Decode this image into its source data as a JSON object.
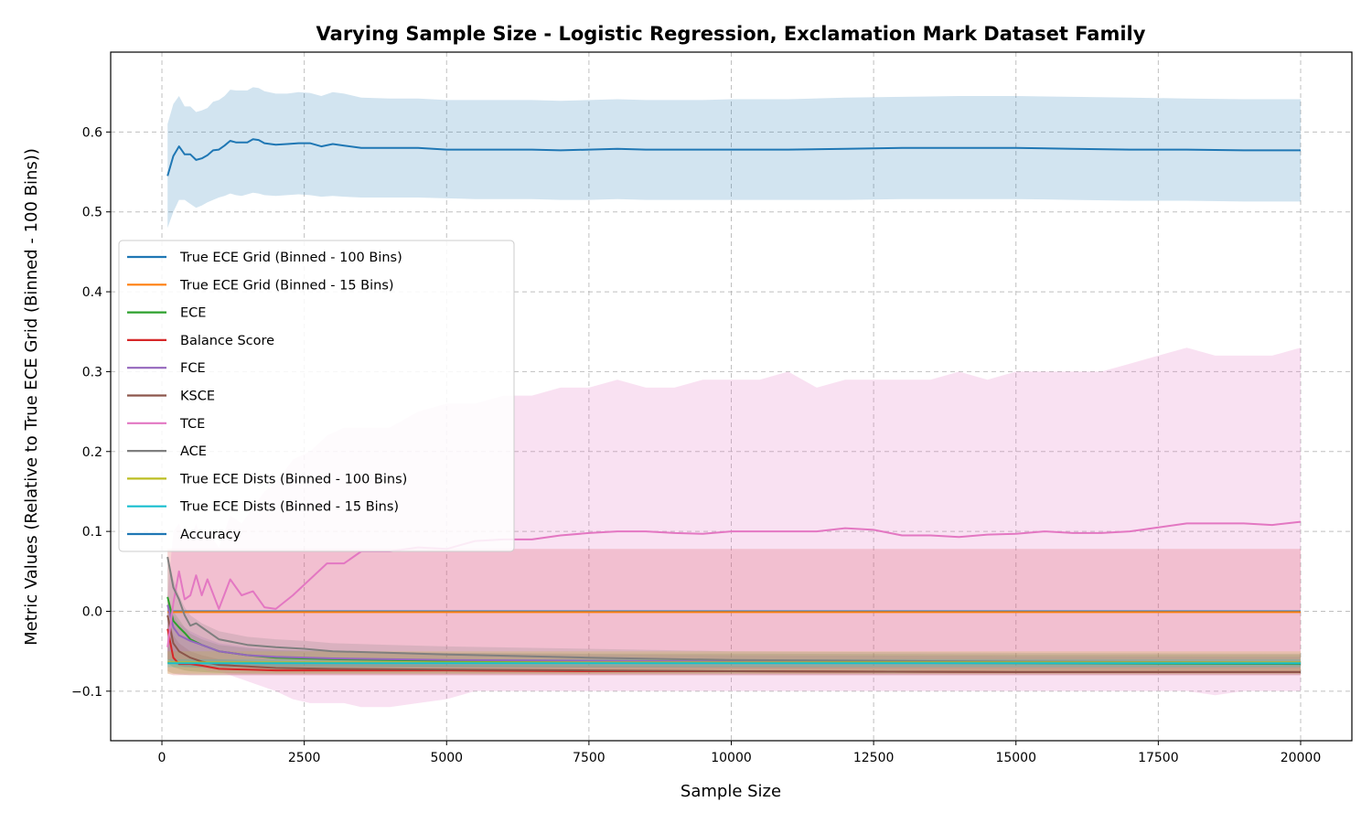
{
  "chart_data": {
    "type": "line",
    "title": "Varying Sample Size - Logistic Regression, Exclamation Mark Dataset Family",
    "xlabel": "Sample Size",
    "ylabel": "Metric Values (Relative to True ECE Grid (Binned - 100 Bins))",
    "xlim": [
      -900,
      20900
    ],
    "ylim": [
      -0.162,
      0.7
    ],
    "xticks": [
      0,
      2500,
      5000,
      7500,
      10000,
      12500,
      15000,
      17500,
      20000
    ],
    "yticks": [
      -0.1,
      0.0,
      0.1,
      0.2,
      0.3,
      0.4,
      0.5,
      0.6
    ],
    "ytick_labels": [
      "−0.1",
      "0.0",
      "0.1",
      "0.2",
      "0.3",
      "0.4",
      "0.5",
      "0.6"
    ],
    "grid": true,
    "legend_position": "center-left",
    "series": [
      {
        "name": "True ECE Grid (Binned - 100 Bins)",
        "color": "#1f77b4",
        "x": [
          100,
          20000
        ],
        "y": [
          0.0,
          0.0
        ],
        "band_low": [
          0.0,
          0.0
        ],
        "band_high": [
          0.0,
          0.0
        ]
      },
      {
        "name": "True ECE Grid (Binned - 15 Bins)",
        "color": "#ff7f0e",
        "x": [
          100,
          20000
        ],
        "y": [
          -0.001,
          -0.001
        ],
        "band_low": [
          -0.002,
          -0.002
        ],
        "band_high": [
          0.0,
          0.0
        ]
      },
      {
        "name": "ECE",
        "color": "#2ca02c",
        "x": [
          100,
          200,
          300,
          400,
          500,
          700,
          1000,
          1500,
          2000,
          3000,
          5000,
          7500,
          10000,
          15000,
          20000
        ],
        "y": [
          0.018,
          -0.012,
          -0.02,
          -0.027,
          -0.035,
          -0.042,
          -0.05,
          -0.055,
          -0.058,
          -0.06,
          -0.062,
          -0.063,
          -0.064,
          -0.065,
          -0.066
        ],
        "band_low": [
          -0.065,
          -0.07,
          -0.072,
          -0.074,
          -0.075,
          -0.076,
          -0.077,
          -0.078,
          -0.078,
          -0.078,
          -0.078,
          -0.078,
          -0.078,
          -0.078,
          -0.078
        ],
        "band_high": [
          0.02,
          0.0,
          -0.01,
          -0.02,
          -0.028,
          -0.035,
          -0.042,
          -0.046,
          -0.048,
          -0.05,
          -0.052,
          -0.053,
          -0.053,
          -0.054,
          -0.054
        ]
      },
      {
        "name": "Balance Score",
        "color": "#d62728",
        "x": [
          100,
          200,
          300,
          500,
          700,
          1000,
          1500,
          2000,
          3000,
          5000,
          7500,
          10000,
          15000,
          20000
        ],
        "y": [
          -0.022,
          -0.058,
          -0.066,
          -0.066,
          -0.068,
          -0.072,
          -0.073,
          -0.074,
          -0.074,
          -0.074,
          -0.075,
          -0.075,
          -0.076,
          -0.076
        ],
        "band_low": [
          -0.078,
          -0.08,
          -0.08,
          -0.08,
          -0.08,
          -0.08,
          -0.08,
          -0.08,
          -0.08,
          -0.08,
          -0.08,
          -0.08,
          -0.08,
          -0.08
        ],
        "band_high": [
          0.078,
          0.078,
          0.078,
          0.078,
          0.078,
          0.078,
          0.078,
          0.078,
          0.078,
          0.078,
          0.078,
          0.078,
          0.078,
          0.078
        ]
      },
      {
        "name": "FCE",
        "color": "#9467bd",
        "x": [
          100,
          200,
          300,
          500,
          700,
          1000,
          1500,
          2000,
          3000,
          5000,
          7500,
          10000,
          15000,
          20000
        ],
        "y": [
          0.008,
          -0.02,
          -0.03,
          -0.037,
          -0.042,
          -0.05,
          -0.055,
          -0.057,
          -0.059,
          -0.061,
          -0.062,
          -0.063,
          -0.064,
          -0.065
        ],
        "band_low": [
          -0.06,
          -0.065,
          -0.068,
          -0.07,
          -0.071,
          -0.072,
          -0.072,
          -0.072,
          -0.072,
          -0.072,
          -0.072,
          -0.072,
          -0.072,
          -0.072
        ],
        "band_high": [
          0.01,
          -0.005,
          -0.015,
          -0.025,
          -0.032,
          -0.04,
          -0.045,
          -0.048,
          -0.05,
          -0.052,
          -0.054,
          -0.055,
          -0.056,
          -0.057
        ]
      },
      {
        "name": "KSCE",
        "color": "#8c564b",
        "x": [
          100,
          200,
          300,
          500,
          700,
          1000,
          1500,
          2000,
          3000,
          5000,
          7500,
          10000,
          15000,
          20000
        ],
        "y": [
          -0.005,
          -0.04,
          -0.05,
          -0.058,
          -0.063,
          -0.067,
          -0.069,
          -0.071,
          -0.072,
          -0.073,
          -0.074,
          -0.075,
          -0.076,
          -0.076
        ],
        "band_low": [
          -0.075,
          -0.078,
          -0.079,
          -0.08,
          -0.08,
          -0.08,
          -0.08,
          -0.08,
          -0.08,
          -0.08,
          -0.08,
          -0.08,
          -0.08,
          -0.08
        ],
        "band_high": [
          0.0,
          -0.03,
          -0.04,
          -0.05,
          -0.055,
          -0.06,
          -0.062,
          -0.064,
          -0.066,
          -0.067,
          -0.068,
          -0.069,
          -0.07,
          -0.07
        ]
      },
      {
        "name": "TCE",
        "color": "#e377c2",
        "x": [
          100,
          200,
          300,
          400,
          500,
          600,
          700,
          800,
          1000,
          1200,
          1400,
          1600,
          1800,
          2000,
          2300,
          2600,
          2900,
          3200,
          3500,
          4000,
          4500,
          5000,
          5500,
          6000,
          6500,
          7000,
          7500,
          8000,
          8500,
          9000,
          9500,
          10000,
          10500,
          11000,
          11500,
          12000,
          12500,
          13000,
          13500,
          14000,
          14500,
          15000,
          15500,
          16000,
          16500,
          17000,
          17500,
          18000,
          18500,
          19000,
          19500,
          20000
        ],
        "y": [
          -0.045,
          0.01,
          0.05,
          0.015,
          0.02,
          0.045,
          0.02,
          0.04,
          0.003,
          0.04,
          0.02,
          0.025,
          0.005,
          0.003,
          0.02,
          0.04,
          0.06,
          0.06,
          0.075,
          0.075,
          0.08,
          0.078,
          0.088,
          0.09,
          0.09,
          0.095,
          0.098,
          0.1,
          0.1,
          0.098,
          0.097,
          0.1,
          0.1,
          0.1,
          0.1,
          0.104,
          0.102,
          0.095,
          0.095,
          0.093,
          0.096,
          0.097,
          0.1,
          0.098,
          0.098,
          0.1,
          0.105,
          0.11,
          0.11,
          0.11,
          0.108,
          0.112
        ],
        "band_low": [
          -0.06,
          -0.06,
          -0.06,
          -0.06,
          -0.06,
          -0.065,
          -0.07,
          -0.075,
          -0.075,
          -0.08,
          -0.085,
          -0.09,
          -0.095,
          -0.1,
          -0.11,
          -0.115,
          -0.115,
          -0.115,
          -0.12,
          -0.12,
          -0.115,
          -0.11,
          -0.1,
          -0.1,
          -0.1,
          -0.1,
          -0.1,
          -0.1,
          -0.1,
          -0.1,
          -0.1,
          -0.1,
          -0.1,
          -0.1,
          -0.1,
          -0.1,
          -0.1,
          -0.1,
          -0.1,
          -0.1,
          -0.1,
          -0.1,
          -0.1,
          -0.1,
          -0.1,
          -0.1,
          -0.1,
          -0.1,
          -0.105,
          -0.1,
          -0.1,
          -0.1
        ],
        "band_high": [
          0.02,
          0.1,
          0.11,
          0.09,
          0.09,
          0.11,
          0.09,
          0.1,
          0.08,
          0.12,
          0.11,
          0.13,
          0.15,
          0.16,
          0.19,
          0.2,
          0.22,
          0.23,
          0.23,
          0.23,
          0.25,
          0.26,
          0.26,
          0.27,
          0.27,
          0.28,
          0.28,
          0.29,
          0.28,
          0.28,
          0.29,
          0.29,
          0.29,
          0.3,
          0.28,
          0.29,
          0.29,
          0.29,
          0.29,
          0.3,
          0.29,
          0.3,
          0.3,
          0.3,
          0.3,
          0.31,
          0.32,
          0.33,
          0.32,
          0.32,
          0.32,
          0.33
        ]
      },
      {
        "name": "ACE",
        "color": "#7f7f7f",
        "x": [
          100,
          200,
          300,
          400,
          500,
          600,
          700,
          1000,
          1500,
          2000,
          2500,
          3000,
          4000,
          5000,
          7500,
          10000,
          15000,
          20000
        ],
        "y": [
          0.068,
          0.03,
          0.015,
          -0.005,
          -0.018,
          -0.015,
          -0.02,
          -0.035,
          -0.042,
          -0.045,
          -0.047,
          -0.05,
          -0.052,
          -0.054,
          -0.058,
          -0.061,
          -0.063,
          -0.064
        ],
        "band_low": [
          -0.06,
          -0.065,
          -0.068,
          -0.07,
          -0.07,
          -0.07,
          -0.07,
          -0.07,
          -0.07,
          -0.07,
          -0.07,
          -0.07,
          -0.07,
          -0.07,
          -0.07,
          -0.07,
          -0.07,
          -0.07
        ],
        "band_high": [
          0.07,
          0.04,
          0.02,
          0.005,
          -0.005,
          -0.01,
          -0.015,
          -0.025,
          -0.032,
          -0.035,
          -0.037,
          -0.04,
          -0.042,
          -0.044,
          -0.047,
          -0.05,
          -0.052,
          -0.053
        ]
      },
      {
        "name": "True ECE Dists (Binned - 100 Bins)",
        "color": "#bcbd22",
        "x": [
          100,
          20000
        ],
        "y": [
          -0.064,
          -0.064
        ],
        "band_low": [
          -0.078,
          -0.078
        ],
        "band_high": [
          -0.05,
          -0.05
        ]
      },
      {
        "name": "True ECE Dists (Binned - 15 Bins)",
        "color": "#17becf",
        "x": [
          100,
          20000
        ],
        "y": [
          -0.065,
          -0.065
        ],
        "band_low": [
          -0.07,
          -0.07
        ],
        "band_high": [
          -0.06,
          -0.06
        ]
      },
      {
        "name": "Accuracy",
        "color": "#1f77b4",
        "x": [
          100,
          200,
          300,
          400,
          500,
          600,
          700,
          800,
          900,
          1000,
          1100,
          1200,
          1300,
          1400,
          1500,
          1600,
          1700,
          1800,
          2000,
          2200,
          2400,
          2600,
          2800,
          3000,
          3200,
          3500,
          4000,
          4500,
          5000,
          5500,
          6000,
          6500,
          7000,
          7500,
          8000,
          8500,
          9000,
          9500,
          10000,
          11000,
          12000,
          13000,
          14000,
          15000,
          16000,
          17000,
          18000,
          19000,
          20000
        ],
        "y": [
          0.545,
          0.57,
          0.582,
          0.572,
          0.572,
          0.565,
          0.567,
          0.571,
          0.577,
          0.578,
          0.583,
          0.589,
          0.587,
          0.587,
          0.587,
          0.591,
          0.59,
          0.586,
          0.584,
          0.585,
          0.586,
          0.586,
          0.582,
          0.585,
          0.583,
          0.58,
          0.58,
          0.58,
          0.578,
          0.578,
          0.578,
          0.578,
          0.577,
          0.578,
          0.579,
          0.578,
          0.578,
          0.578,
          0.578,
          0.578,
          0.579,
          0.58,
          0.58,
          0.58,
          0.579,
          0.578,
          0.578,
          0.577,
          0.577
        ],
        "band_low": [
          0.48,
          0.5,
          0.515,
          0.515,
          0.51,
          0.505,
          0.508,
          0.512,
          0.515,
          0.518,
          0.52,
          0.523,
          0.521,
          0.52,
          0.522,
          0.524,
          0.523,
          0.521,
          0.52,
          0.521,
          0.522,
          0.521,
          0.519,
          0.52,
          0.519,
          0.518,
          0.518,
          0.518,
          0.517,
          0.516,
          0.516,
          0.516,
          0.515,
          0.515,
          0.516,
          0.515,
          0.515,
          0.515,
          0.515,
          0.515,
          0.515,
          0.516,
          0.516,
          0.516,
          0.515,
          0.514,
          0.514,
          0.513,
          0.513
        ],
        "band_high": [
          0.61,
          0.635,
          0.645,
          0.632,
          0.632,
          0.625,
          0.627,
          0.63,
          0.638,
          0.64,
          0.645,
          0.653,
          0.652,
          0.652,
          0.652,
          0.656,
          0.655,
          0.651,
          0.648,
          0.648,
          0.65,
          0.649,
          0.645,
          0.65,
          0.648,
          0.643,
          0.642,
          0.642,
          0.64,
          0.64,
          0.64,
          0.64,
          0.639,
          0.64,
          0.641,
          0.64,
          0.64,
          0.64,
          0.641,
          0.641,
          0.643,
          0.644,
          0.645,
          0.645,
          0.644,
          0.643,
          0.642,
          0.641,
          0.641
        ]
      }
    ]
  }
}
